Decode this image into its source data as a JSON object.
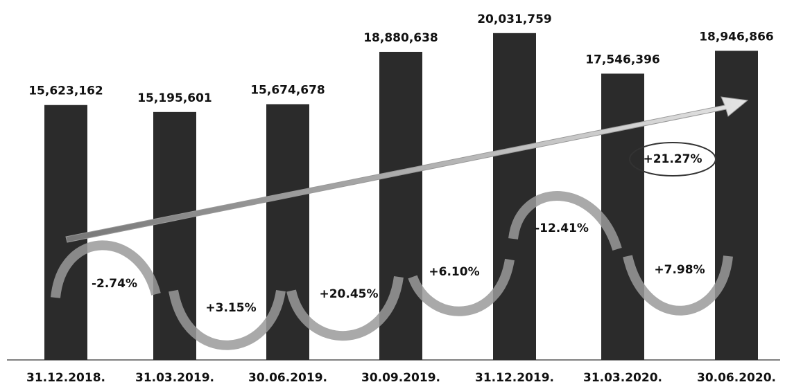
{
  "chart_data": {
    "type": "bar",
    "categories": [
      "31.12.2018.",
      "31.03.2019.",
      "30.06.2019.",
      "30.09.2019.",
      "31.12.2019.",
      "31.03.2020.",
      "30.06.2020."
    ],
    "values": [
      15623162,
      15195601,
      15674678,
      18880638,
      20031759,
      17546396,
      18946866
    ],
    "value_labels": [
      "15,623,162",
      "15,195,601",
      "15,674,678",
      "18,880,638",
      "20,031,759",
      "17,546,396",
      "18,946,866"
    ],
    "color": "#2b2b2b",
    "ylim": [
      0,
      21000000
    ],
    "annotations": [
      "-2.74%",
      "+3.15%",
      "+20.45%",
      "+6.10%",
      "-12.41%",
      "+7.98%",
      "+21.27%"
    ]
  }
}
